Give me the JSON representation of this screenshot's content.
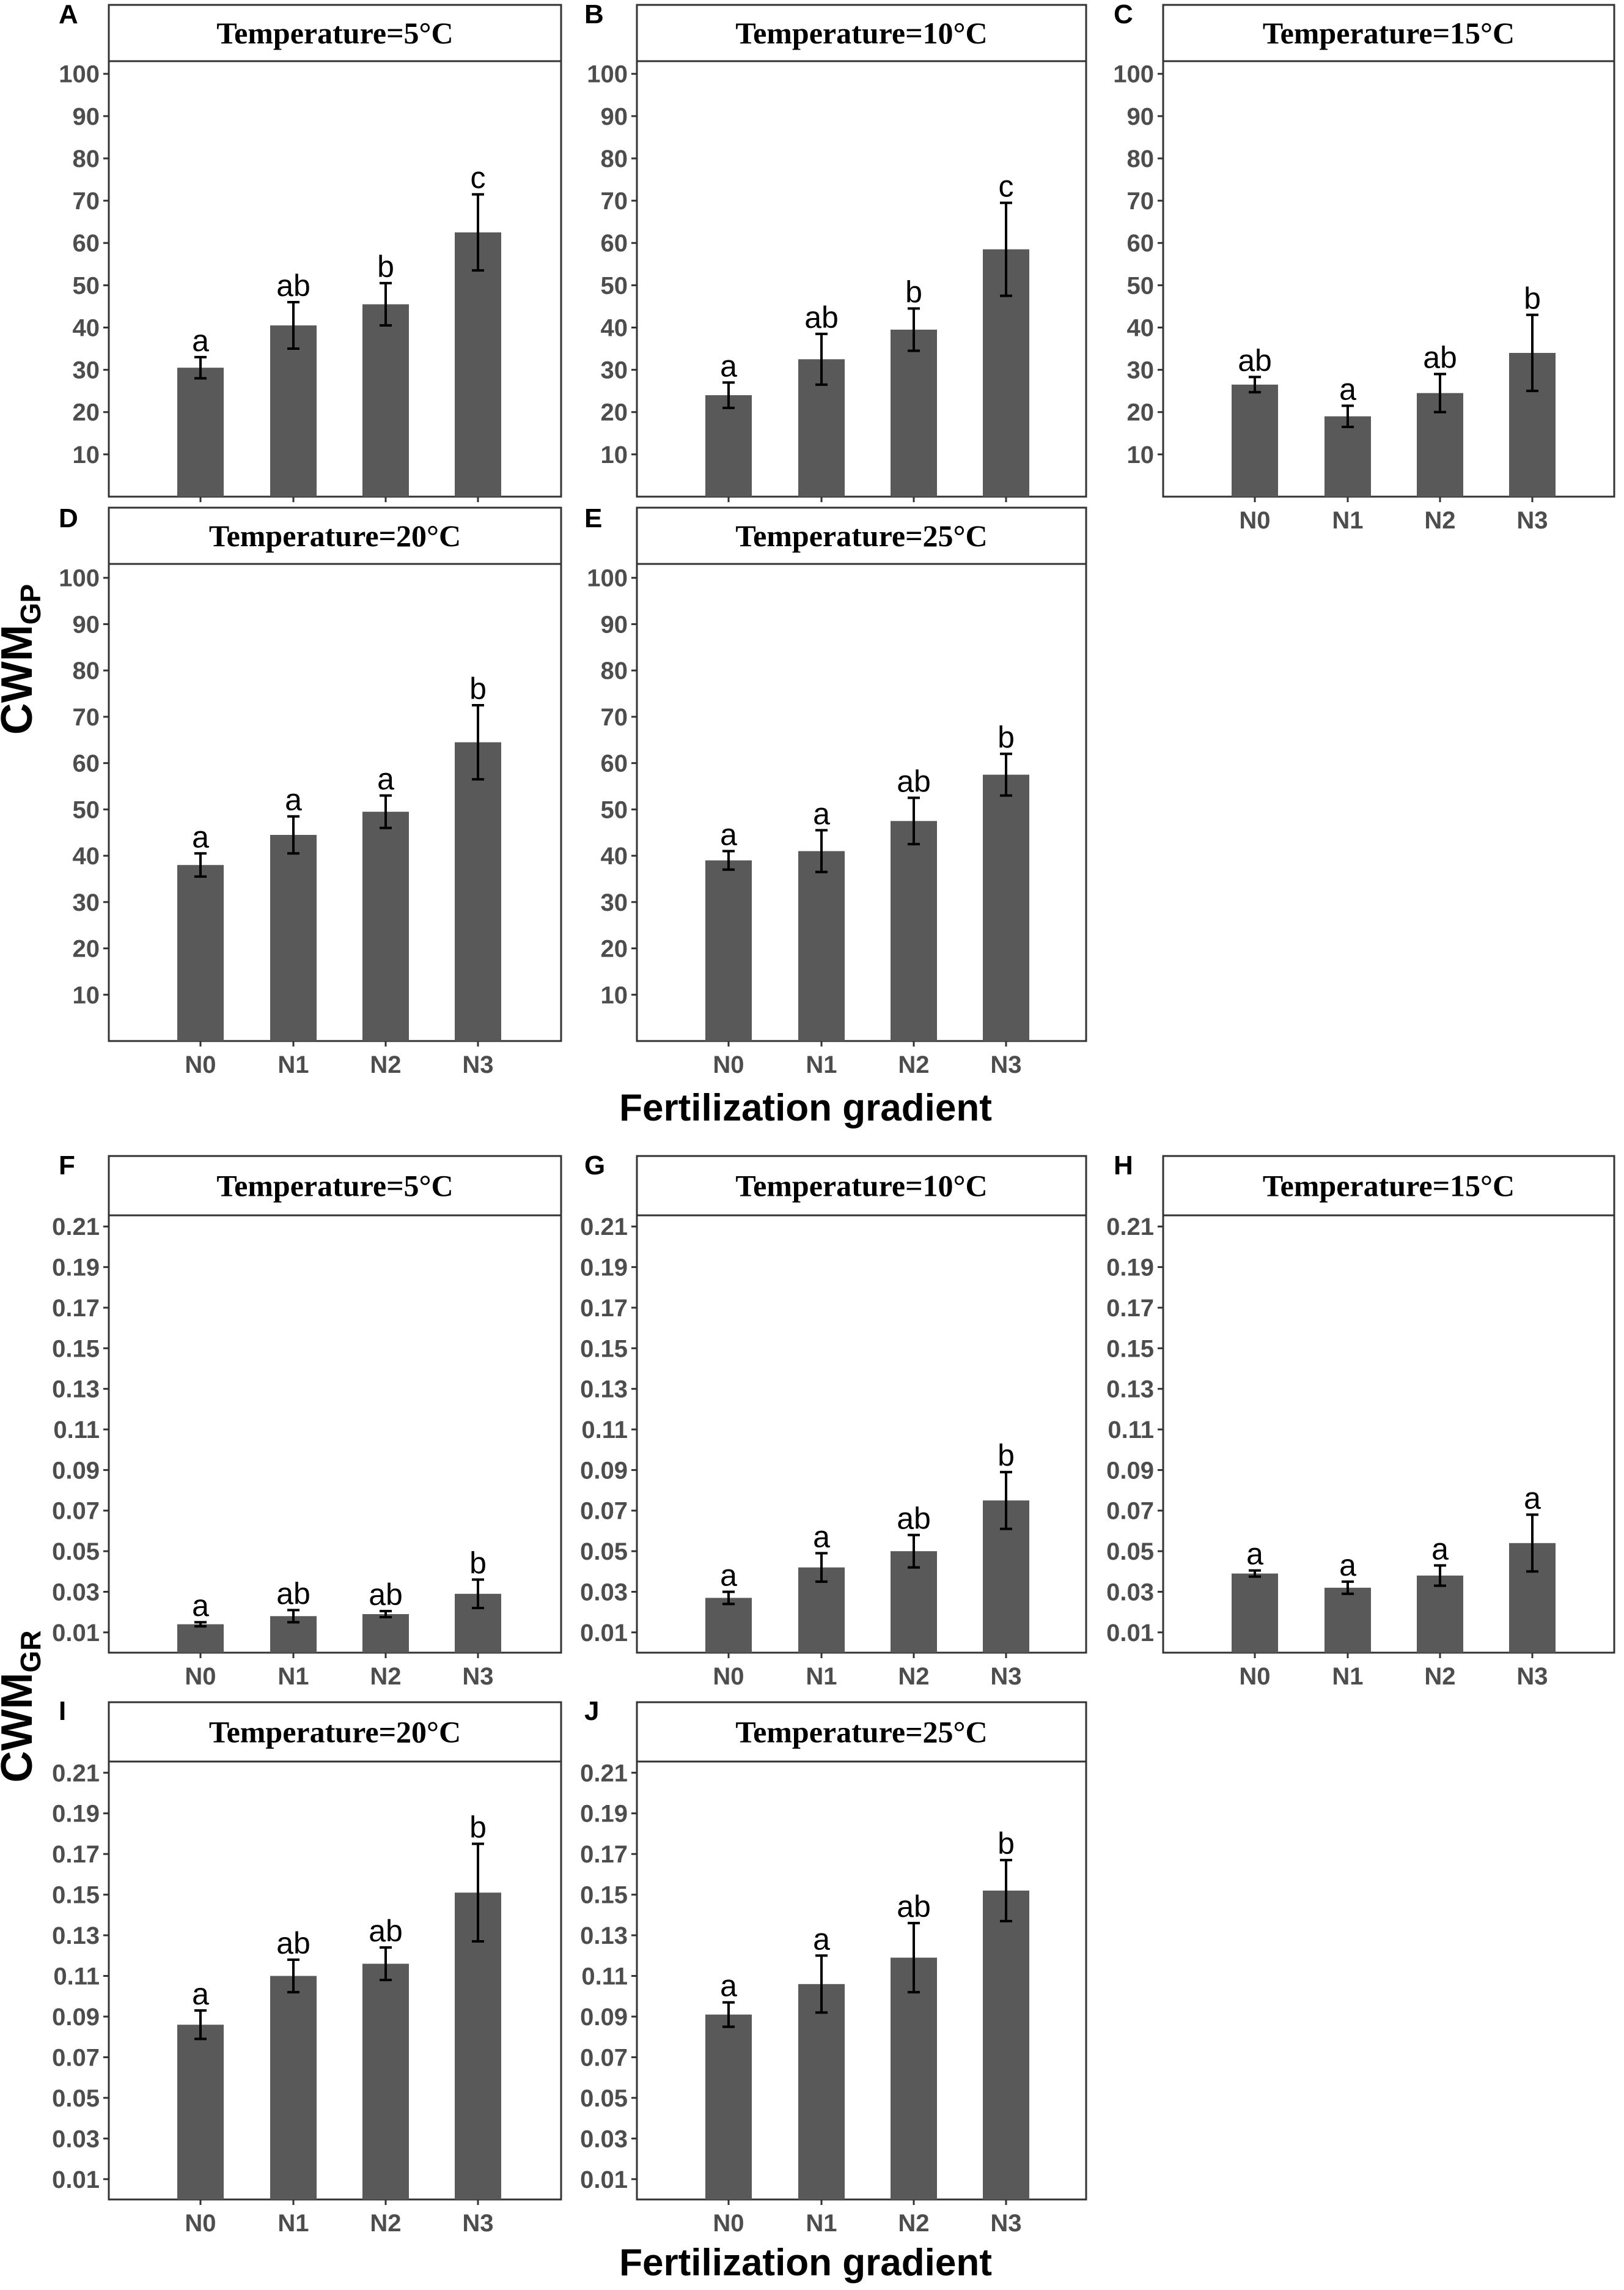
{
  "figure": {
    "top_xlabel": "Fertilization gradient",
    "bottom_xlabel": "Fertilization gradient",
    "top_ylabel": {
      "main": "CWM",
      "sub": "GP"
    },
    "bottom_ylabel": {
      "main": "CWM",
      "sub": "GR"
    },
    "bar_color": "#595959",
    "strip_fill": "#ffffff",
    "border_color": "#333333"
  },
  "chart_data": [
    {
      "type": "bar",
      "label": "A",
      "title": "Temperature=5°C",
      "categories": [
        "N0",
        "N1",
        "N2",
        "N3"
      ],
      "values": [
        30.5,
        40.5,
        45.5,
        62.5
      ],
      "errors": [
        2.5,
        5.5,
        5,
        9
      ],
      "letters": [
        "a",
        "ab",
        "b",
        "c"
      ],
      "ylim": [
        0,
        103
      ],
      "yticks": [
        "10",
        "20",
        "30",
        "40",
        "50",
        "60",
        "70",
        "80",
        "90",
        "100"
      ]
    },
    {
      "type": "bar",
      "label": "B",
      "title": "Temperature=10°C",
      "categories": [
        "N0",
        "N1",
        "N2",
        "N3"
      ],
      "values": [
        24,
        32.5,
        39.5,
        58.5
      ],
      "errors": [
        3,
        6,
        5,
        11
      ],
      "letters": [
        "a",
        "ab",
        "b",
        "c"
      ],
      "ylim": [
        0,
        103
      ],
      "yticks": [
        "10",
        "20",
        "30",
        "40",
        "50",
        "60",
        "70",
        "80",
        "90",
        "100"
      ]
    },
    {
      "type": "bar",
      "label": "C",
      "title": "Temperature=15°C",
      "categories": [
        "N0",
        "N1",
        "N2",
        "N3"
      ],
      "values": [
        26.5,
        19,
        24.5,
        34
      ],
      "errors": [
        1.8,
        2.5,
        4.5,
        9
      ],
      "letters": [
        "ab",
        "a",
        "ab",
        "b"
      ],
      "ylim": [
        0,
        103
      ],
      "yticks": [
        "10",
        "20",
        "30",
        "40",
        "50",
        "60",
        "70",
        "80",
        "90",
        "100"
      ]
    },
    {
      "type": "bar",
      "label": "D",
      "title": "Temperature=20°C",
      "categories": [
        "N0",
        "N1",
        "N2",
        "N3"
      ],
      "values": [
        38,
        44.5,
        49.5,
        64.5
      ],
      "errors": [
        2.5,
        4,
        3.5,
        8
      ],
      "letters": [
        "a",
        "a",
        "a",
        "b"
      ],
      "ylim": [
        0,
        103
      ],
      "yticks": [
        "10",
        "20",
        "30",
        "40",
        "50",
        "60",
        "70",
        "80",
        "90",
        "100"
      ]
    },
    {
      "type": "bar",
      "label": "E",
      "title": "Temperature=25°C",
      "categories": [
        "N0",
        "N1",
        "N2",
        "N3"
      ],
      "values": [
        39,
        41,
        47.5,
        57.5
      ],
      "errors": [
        2,
        4.5,
        5,
        4.5
      ],
      "letters": [
        "a",
        "a",
        "ab",
        "b"
      ],
      "ylim": [
        0,
        103
      ],
      "yticks": [
        "10",
        "20",
        "30",
        "40",
        "50",
        "60",
        "70",
        "80",
        "90",
        "100"
      ]
    },
    {
      "type": "bar",
      "label": "F",
      "title": "Temperature=5°C",
      "categories": [
        "N0",
        "N1",
        "N2",
        "N3"
      ],
      "values": [
        0.014,
        0.018,
        0.019,
        0.029
      ],
      "errors": [
        0.001,
        0.003,
        0.0015,
        0.007
      ],
      "letters": [
        "a",
        "ab",
        "ab",
        "b"
      ],
      "ylim": [
        0,
        0.2155
      ],
      "yticks": [
        "0.01",
        "0.03",
        "0.05",
        "0.07",
        "0.09",
        "0.11",
        "0.13",
        "0.15",
        "0.17",
        "0.19",
        "0.21"
      ]
    },
    {
      "type": "bar",
      "label": "G",
      "title": "Temperature=10°C",
      "categories": [
        "N0",
        "N1",
        "N2",
        "N3"
      ],
      "values": [
        0.027,
        0.042,
        0.05,
        0.075
      ],
      "errors": [
        0.003,
        0.007,
        0.008,
        0.014
      ],
      "letters": [
        "a",
        "a",
        "ab",
        "b"
      ],
      "ylim": [
        0,
        0.2155
      ],
      "yticks": [
        "0.01",
        "0.03",
        "0.05",
        "0.07",
        "0.09",
        "0.11",
        "0.13",
        "0.15",
        "0.17",
        "0.19",
        "0.21"
      ]
    },
    {
      "type": "bar",
      "label": "H",
      "title": "Temperature=15°C",
      "categories": [
        "N0",
        "N1",
        "N2",
        "N3"
      ],
      "values": [
        0.039,
        0.032,
        0.038,
        0.054
      ],
      "errors": [
        0.0015,
        0.003,
        0.005,
        0.014
      ],
      "letters": [
        "a",
        "a",
        "a",
        "a"
      ],
      "ylim": [
        0,
        0.2155
      ],
      "yticks": [
        "0.01",
        "0.03",
        "0.05",
        "0.07",
        "0.09",
        "0.11",
        "0.13",
        "0.15",
        "0.17",
        "0.19",
        "0.21"
      ]
    },
    {
      "type": "bar",
      "label": "I",
      "title": "Temperature=20°C",
      "categories": [
        "N0",
        "N1",
        "N2",
        "N3"
      ],
      "values": [
        0.086,
        0.11,
        0.116,
        0.151
      ],
      "errors": [
        0.007,
        0.008,
        0.008,
        0.024
      ],
      "letters": [
        "a",
        "ab",
        "ab",
        "b"
      ],
      "ylim": [
        0,
        0.2155
      ],
      "yticks": [
        "0.01",
        "0.03",
        "0.05",
        "0.07",
        "0.09",
        "0.11",
        "0.13",
        "0.15",
        "0.17",
        "0.19",
        "0.21"
      ]
    },
    {
      "type": "bar",
      "label": "J",
      "title": "Temperature=25°C",
      "categories": [
        "N0",
        "N1",
        "N2",
        "N3"
      ],
      "values": [
        0.091,
        0.106,
        0.119,
        0.152
      ],
      "errors": [
        0.006,
        0.014,
        0.017,
        0.015
      ],
      "letters": [
        "a",
        "a",
        "ab",
        "b"
      ],
      "ylim": [
        0,
        0.2155
      ],
      "yticks": [
        "0.01",
        "0.03",
        "0.05",
        "0.07",
        "0.09",
        "0.11",
        "0.13",
        "0.15",
        "0.17",
        "0.19",
        "0.21"
      ]
    }
  ]
}
